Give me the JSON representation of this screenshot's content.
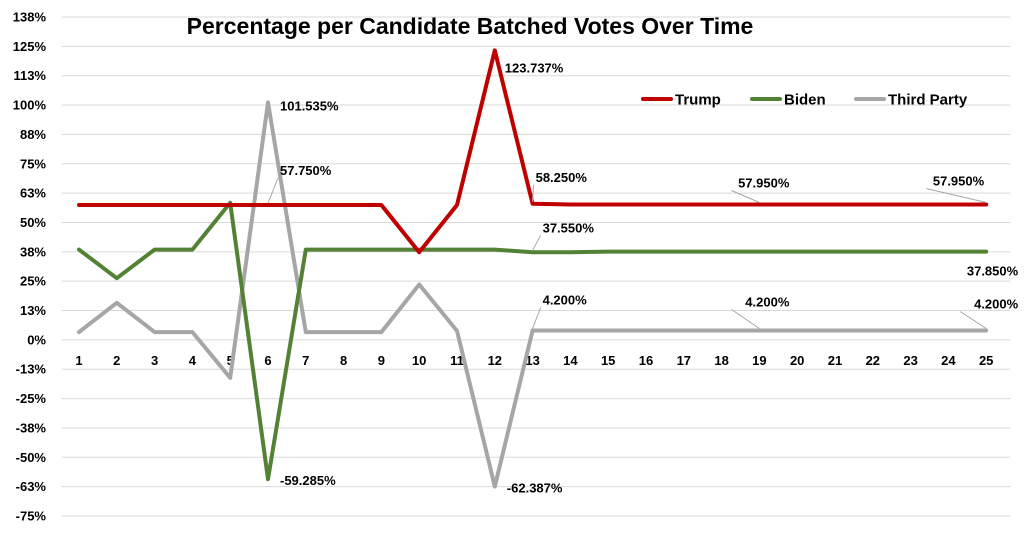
{
  "chart_data": {
    "type": "line",
    "title": "Percentage per Candidate Batched Votes Over Time",
    "categories": [
      "1",
      "2",
      "3",
      "4",
      "5",
      "6",
      "7",
      "8",
      "9",
      "10",
      "11",
      "12",
      "13",
      "14",
      "15",
      "16",
      "17",
      "18",
      "19",
      "20",
      "21",
      "22",
      "23",
      "24",
      "25"
    ],
    "y_ticks": [
      "138%",
      "125%",
      "113%",
      "100%",
      "88%",
      "75%",
      "63%",
      "50%",
      "38%",
      "25%",
      "13%",
      "0%",
      "-13%",
      "-25%",
      "-38%",
      "-50%",
      "-63%",
      "-75%"
    ],
    "ylim": [
      -75,
      138
    ],
    "grid": true,
    "legend_position": "top-right",
    "series": [
      {
        "name": "Trump",
        "color": "#c00000",
        "values": [
          57.75,
          57.75,
          57.75,
          57.75,
          57.75,
          57.75,
          57.75,
          57.75,
          57.75,
          37.55,
          57.75,
          123.737,
          58.25,
          57.95,
          57.95,
          57.95,
          57.95,
          57.95,
          57.95,
          57.95,
          57.95,
          57.95,
          57.95,
          57.95,
          57.95
        ]
      },
      {
        "name": "Biden",
        "color": "#548235",
        "values": [
          38.7,
          26.5,
          38.7,
          38.7,
          58.7,
          -59.285,
          38.7,
          38.7,
          38.7,
          38.7,
          38.7,
          38.7,
          37.55,
          37.55,
          37.85,
          37.85,
          37.85,
          37.85,
          37.85,
          37.85,
          37.85,
          37.85,
          37.85,
          37.85,
          37.85
        ]
      },
      {
        "name": "Third Party",
        "color": "#a6a6a6",
        "values": [
          3.5,
          16.0,
          3.5,
          3.5,
          -16.0,
          101.535,
          3.5,
          3.5,
          3.5,
          23.8,
          4.0,
          -62.387,
          4.2,
          4.2,
          4.2,
          4.2,
          4.2,
          4.2,
          4.2,
          4.2,
          4.2,
          4.2,
          4.2,
          4.2,
          4.2
        ]
      }
    ],
    "annotations": [
      {
        "text": "101.535%",
        "series": "Third Party",
        "category": "6"
      },
      {
        "text": "57.750%",
        "series": "Trump",
        "category": "6"
      },
      {
        "text": "-59.285%",
        "series": "Biden",
        "category": "6"
      },
      {
        "text": "123.737%",
        "series": "Trump",
        "category": "12"
      },
      {
        "text": "-62.387%",
        "series": "Third Party",
        "category": "12"
      },
      {
        "text": "58.250%",
        "series": "Trump",
        "category": "13"
      },
      {
        "text": "37.550%",
        "series": "Biden",
        "category": "13"
      },
      {
        "text": "4.200%",
        "series": "Third Party",
        "category": "13"
      },
      {
        "text": "57.950%",
        "series": "Trump",
        "category": "19"
      },
      {
        "text": "4.200%",
        "series": "Third Party",
        "category": "19"
      },
      {
        "text": "57.950%",
        "series": "Trump",
        "category": "25"
      },
      {
        "text": "37.850%",
        "series": "Biden",
        "category": "25"
      },
      {
        "text": "4.200%",
        "series": "Third Party",
        "category": "25"
      }
    ]
  }
}
